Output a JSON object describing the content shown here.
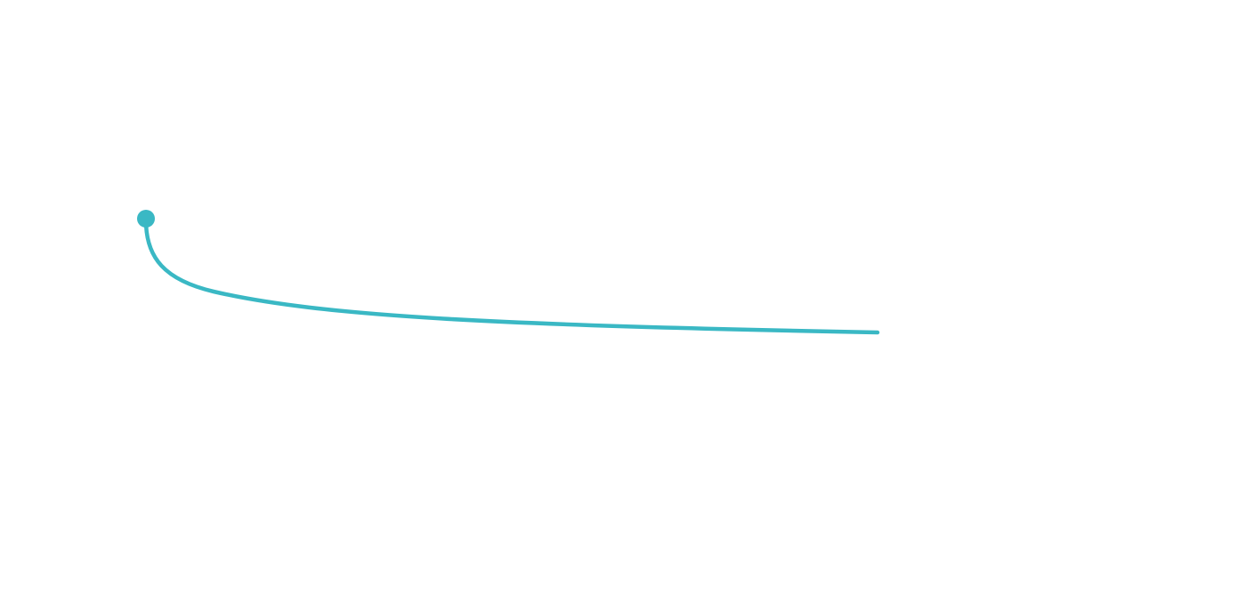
{
  "connector": {
    "stroke_color": "#3ab8c4",
    "start_marker": "filled-circle",
    "end_marker": "none",
    "curve_shape": "hook-curve"
  }
}
